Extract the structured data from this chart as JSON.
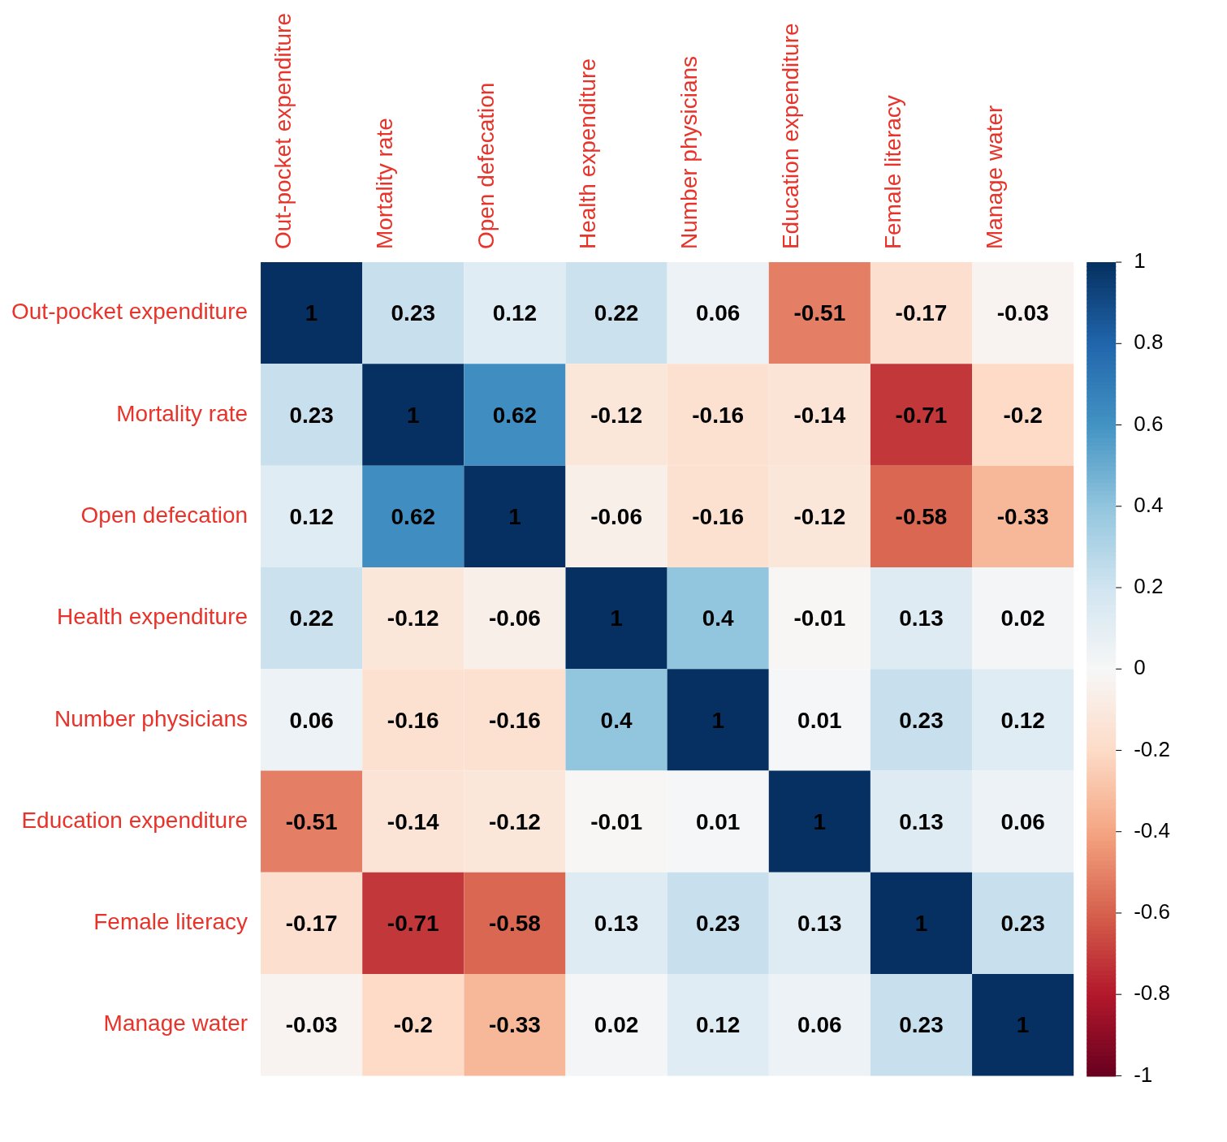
{
  "chart_data": {
    "type": "heatmap",
    "categories": [
      "Out-pocket expenditure",
      "Mortality rate",
      "Open defecation",
      "Health expenditure",
      "Number physicians",
      "Education expenditure",
      "Female literacy",
      "Manage water"
    ],
    "y_categories": [
      "Out-pocket expenditure",
      "Mortality rate",
      "Open defecation",
      "Health expenditure",
      "Number physicians",
      "Education expenditure",
      "Female literacy",
      "Manage water"
    ],
    "cells": [
      [
        1,
        0.23,
        0.12,
        0.22,
        0.06,
        -0.51,
        -0.17,
        -0.03
      ],
      [
        0.23,
        1,
        0.62,
        -0.12,
        -0.16,
        -0.14,
        -0.71,
        -0.2
      ],
      [
        0.12,
        0.62,
        1,
        -0.06,
        -0.16,
        -0.12,
        -0.58,
        -0.33
      ],
      [
        0.22,
        -0.12,
        -0.06,
        1,
        0.4,
        -0.01,
        0.13,
        0.02
      ],
      [
        0.06,
        -0.16,
        -0.16,
        0.4,
        1,
        0.01,
        0.23,
        0.12
      ],
      [
        -0.51,
        -0.14,
        -0.12,
        -0.01,
        0.01,
        1,
        0.13,
        0.06
      ],
      [
        -0.17,
        -0.71,
        -0.58,
        0.13,
        0.23,
        0.13,
        1,
        0.23
      ],
      [
        -0.03,
        -0.2,
        -0.33,
        0.02,
        0.12,
        0.06,
        0.23,
        1
      ]
    ],
    "clim": [
      -1,
      1
    ],
    "cticks": [
      1,
      0.8,
      0.6,
      0.4,
      0.2,
      0,
      -0.2,
      -0.4,
      -0.6,
      -0.8,
      -1
    ],
    "data_labels": true
  }
}
